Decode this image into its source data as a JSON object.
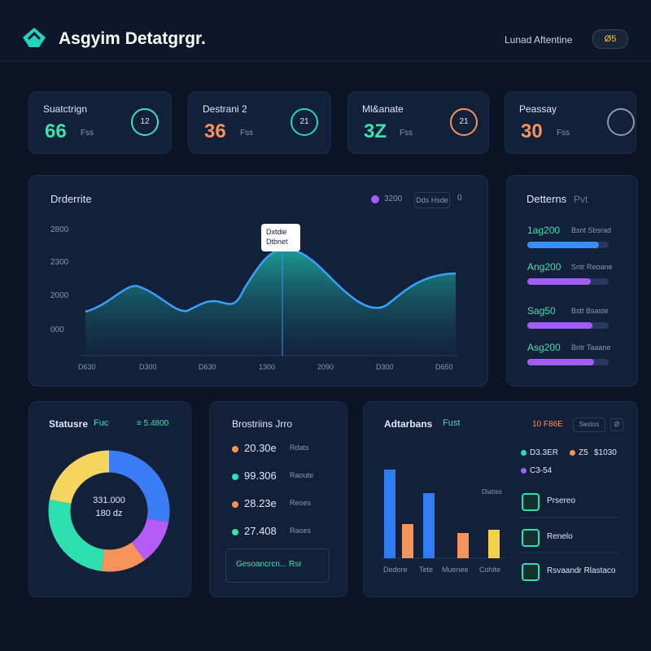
{
  "header": {
    "title": "Asgyim Detatgrgr.",
    "user": "Lunad Aftentine",
    "badge": "Ø5"
  },
  "kpis": [
    {
      "label": "Suatctrign",
      "value": "66",
      "unit": "Fss",
      "badge": "12"
    },
    {
      "label": "Destrani 2",
      "value": "36",
      "unit": "Fss",
      "badge": "21"
    },
    {
      "label": "Ml&anate",
      "value": "3Z",
      "unit": "Fss",
      "badge": "21"
    },
    {
      "label": "Peassay",
      "value": "30",
      "unit": "Fss"
    }
  ],
  "trend": {
    "title": "Drderrite",
    "legend": "3200",
    "button": "Dds Hsde",
    "button_icon": "0",
    "y_labels": [
      "2800",
      "2300",
      "2000",
      "000"
    ],
    "x_labels": [
      "D630",
      "D300",
      "D630",
      "1300",
      "2090",
      "D300",
      "D650"
    ],
    "tooltip": [
      "Dxtdie",
      "Dtbnet"
    ]
  },
  "details": {
    "title": "Detterns",
    "tag": "Pvt",
    "rows": [
      {
        "label": "1ag200",
        "note": "Bsnt Sbsrad"
      },
      {
        "label": "Ang200",
        "note": "Sntr Reoane"
      },
      {
        "label": "Sag50",
        "note": "Bstt Bsaste"
      },
      {
        "label": "Asg200",
        "note": "Bntr Taaane"
      }
    ]
  },
  "status": {
    "title": "Statusre",
    "tag": "Fuc",
    "side": "≡ 5.4800",
    "center": [
      "331.000",
      "180 dz"
    ]
  },
  "list": {
    "title": "Brostriins Jrro",
    "items": [
      {
        "value": "20.30e",
        "note": "Rdats"
      },
      {
        "value": "99.306",
        "note": "Raoute"
      },
      {
        "value": "28.23e",
        "note": "Reoes"
      },
      {
        "value": "27.408",
        "note": "Raoes"
      }
    ],
    "button": "Gesoancrcn... Rsr"
  },
  "activity": {
    "title": "Adtarbans",
    "tag": "Fust",
    "code": "10 F86E",
    "button": "Sestos",
    "icon": "Ø",
    "legend": [
      "D3.3ER",
      "Z5",
      "$1030",
      "C3-54"
    ],
    "note": "Diattes",
    "bar_labels": [
      "Dedore",
      "Tete",
      "Muenee",
      "Cohite"
    ],
    "items": [
      "Prsereo",
      "Renelo",
      "Rsvaandr Rlastaco"
    ]
  }
}
